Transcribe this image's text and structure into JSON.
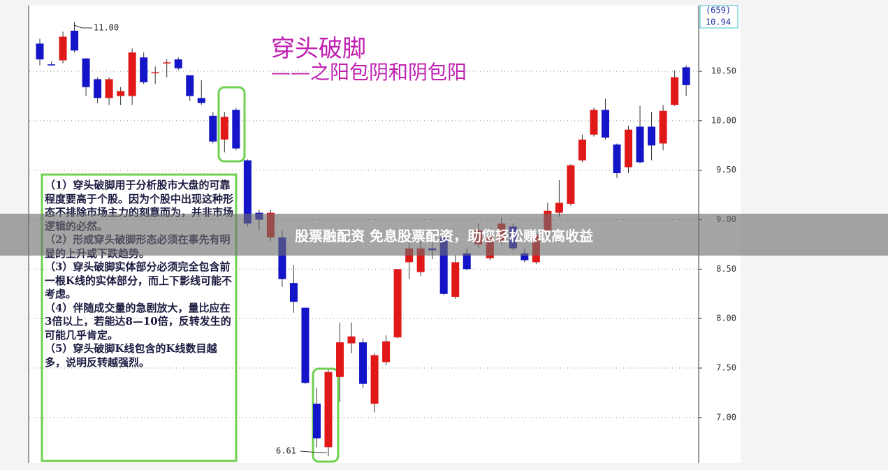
{
  "chart_data": {
    "type": "candlestick",
    "title": "穿头破脚",
    "subtitle": "——之阳包阴和阴包阳",
    "price_box": [
      "(659)",
      "10.94"
    ],
    "annotations": [
      "11.00",
      "6.61"
    ],
    "up_color": "#e01818",
    "down_color": "#1414c8",
    "ylim": [
      6.54,
      11.15
    ],
    "yticks": [
      {
        "value": 7,
        "label": "7.00"
      },
      {
        "value": 7.5,
        "label": "7.50"
      },
      {
        "value": 8,
        "label": "8.00"
      },
      {
        "value": 8.5,
        "label": "8.50"
      },
      {
        "value": 9,
        "label": "9.00"
      },
      {
        "value": 9.5,
        "label": "9.50"
      },
      {
        "value": 10,
        "label": "10.00"
      },
      {
        "value": 10.5,
        "label": "10.50"
      }
    ],
    "grid": true,
    "open": [
      10.78,
      10.57,
      10.61,
      10.91,
      10.63,
      10.42,
      10.23,
      10.25,
      10.25,
      10.64,
      10.48,
      10.58,
      10.62,
      10.46,
      10.23,
      10.05,
      9.81,
      10.11,
      9.6,
      9.07,
      8.82,
      8.82,
      8.36,
      8.11,
      7.14,
      6.7,
      7.41,
      7.75,
      7.76,
      7.14,
      7.56,
      7.81,
      8.57,
      8.47,
      8.71,
      8.82,
      8.22,
      8.66,
      8.75,
      8.61,
      8.78,
      8.93,
      8.66,
      8.57,
      8.89,
      9.07,
      9.16,
      9.6,
      9.86,
      10.11,
      9.76,
      9.53,
      9.94,
      9.94,
      9.77,
      10.16,
      10.54
    ],
    "high": [
      10.83,
      10.6,
      10.9,
      11.0,
      10.63,
      10.44,
      10.44,
      10.34,
      10.73,
      10.69,
      10.55,
      10.62,
      10.64,
      10.46,
      10.41,
      10.09,
      10.09,
      10.13,
      9.61,
      9.1,
      9.1,
      8.89,
      8.54,
      8.11,
      7.3,
      7.48,
      7.96,
      7.96,
      7.8,
      7.65,
      7.83,
      8.5,
      8.85,
      8.78,
      8.78,
      8.89,
      8.64,
      8.71,
      8.96,
      8.89,
      9.02,
      8.96,
      8.71,
      8.89,
      9.17,
      9.4,
      9.56,
      9.86,
      10.13,
      10.22,
      9.77,
      9.95,
      10.15,
      10.09,
      10.16,
      10.51,
      10.56
    ],
    "low": [
      10.56,
      10.56,
      10.58,
      10.69,
      10.25,
      10.18,
      10.16,
      10.16,
      10.16,
      10.37,
      10.37,
      10.44,
      10.51,
      10.2,
      10.16,
      9.77,
      9.68,
      9.7,
      8.93,
      8.89,
      8.78,
      8.32,
      8.06,
      7.34,
      6.7,
      6.61,
      7.16,
      7.65,
      7.3,
      7.05,
      7.53,
      7.8,
      8.4,
      8.43,
      8.6,
      8.24,
      8.2,
      8.49,
      8.71,
      8.59,
      8.75,
      8.69,
      8.57,
      8.55,
      8.85,
      9.03,
      9.14,
      9.58,
      9.84,
      9.81,
      9.42,
      9.47,
      9.57,
      9.6,
      9.7,
      10.15,
      10.25
    ],
    "close": [
      10.62,
      10.56,
      10.85,
      10.71,
      10.34,
      10.23,
      10.42,
      10.3,
      10.69,
      10.39,
      10.49,
      10.59,
      10.53,
      10.25,
      10.18,
      9.79,
      10.04,
      9.72,
      8.96,
      9.0,
      9.07,
      8.4,
      8.17,
      7.35,
      6.79,
      7.46,
      7.76,
      7.82,
      7.34,
      7.63,
      7.77,
      8.5,
      8.71,
      8.71,
      8.69,
      8.25,
      8.57,
      8.5,
      8.89,
      8.82,
      8.96,
      8.71,
      8.59,
      8.85,
      9.09,
      9.17,
      9.55,
      9.81,
      10.11,
      9.83,
      9.47,
      9.91,
      9.58,
      9.75,
      10.1,
      10.44,
      10.36
    ],
    "notes": [
      "（1）穿头破脚用于分析股市大盘的可靠程度要高于个股。因为个股中出现这种形态不排除市场主力的刻意而为，并非市场逻辑的必然。",
      "（2）形成穿头破脚形态必须在事先有明显的上升或下跌趋势。",
      "（3）穿头破脚实体部分必须完全包含前一根K线的实体部分，而上下影线可能不考虑。",
      "（4）伴随成交量的急剧放大，量比应在3倍以上，若能达8—10倍，反转发生的可能几乎肯定。",
      "（5）穿头破脚K线包含的K线数目越多，说明反转越强烈。"
    ]
  },
  "banner": "股票融配资 免息股票配资，助您轻松赚取高收益"
}
